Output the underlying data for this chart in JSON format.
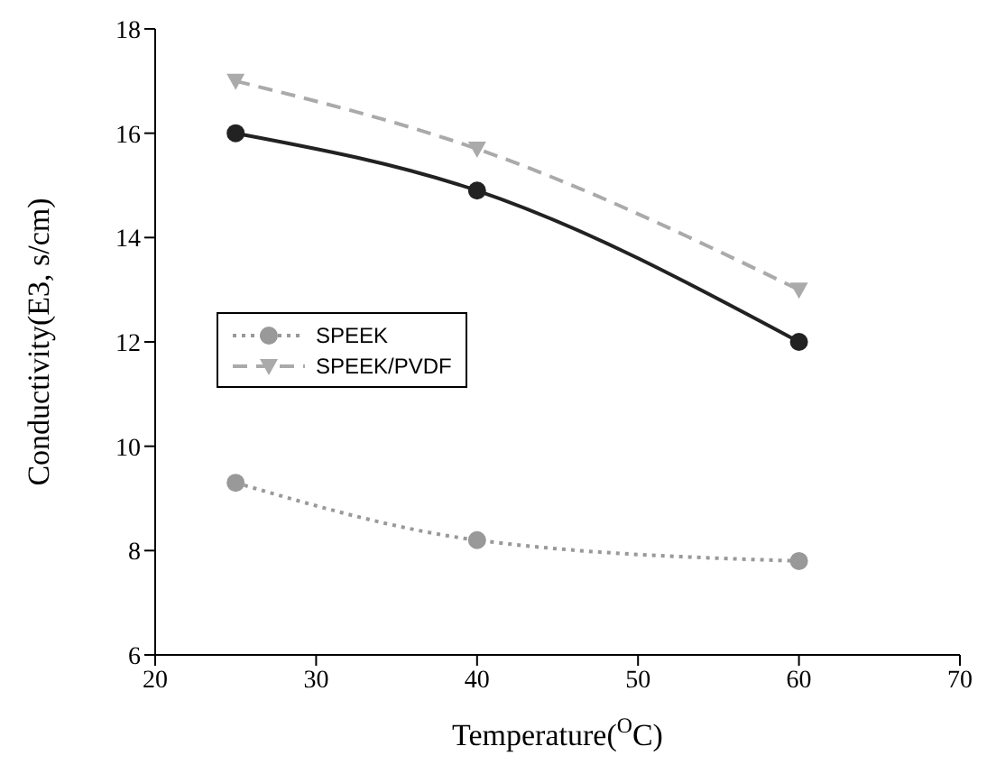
{
  "chart_data": {
    "type": "line",
    "xlabel": "Temperature($^{O}$C)",
    "ylabel": "Conductivity(E3, s/cm)",
    "x": [
      25,
      40,
      60
    ],
    "series": [
      {
        "color": "#222222",
        "values": [
          16,
          14.9,
          12
        ],
        "marker": "circle",
        "line_style": "solid"
      },
      {
        "name": "SPEEK",
        "color": "#999999",
        "values": [
          9.3,
          8.2,
          7.8
        ],
        "marker": "circle",
        "line_style": "dotted"
      },
      {
        "name": "SPEEK/PVDF",
        "color": "#aaaaaa",
        "values": [
          17,
          15.7,
          13
        ],
        "marker": "triangle",
        "line_style": "dashed"
      }
    ],
    "xlim": [
      20,
      70
    ],
    "xticks": [
      20,
      30,
      40,
      50,
      60,
      70
    ],
    "ylim": [
      6,
      18
    ],
    "yticks": [
      6,
      8,
      10,
      12,
      14,
      16,
      18
    ],
    "grid": false,
    "legend": "left"
  }
}
